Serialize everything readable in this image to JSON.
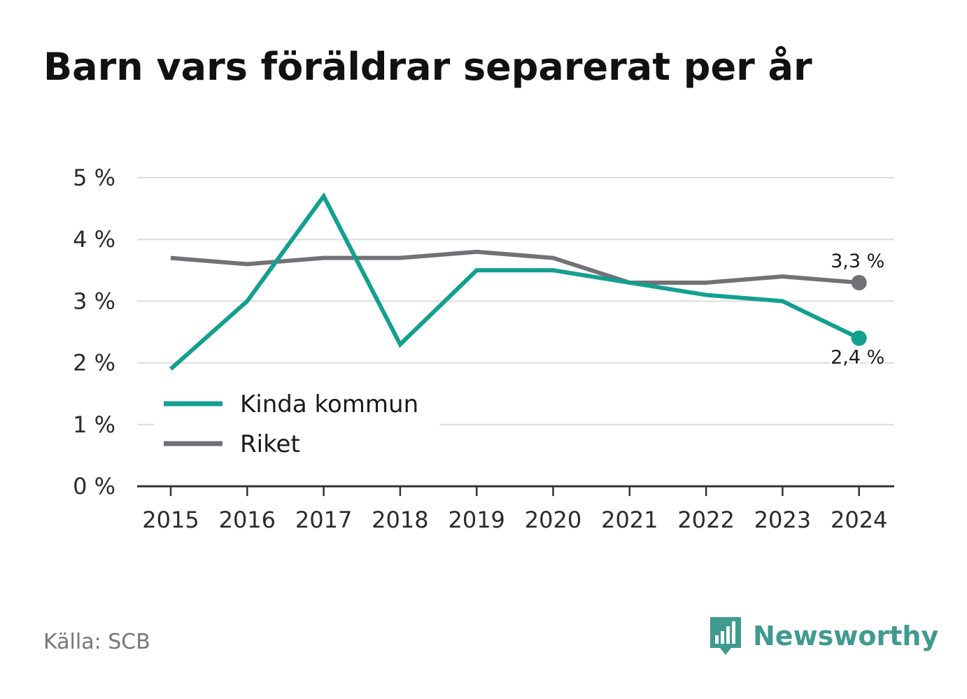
{
  "title": "Barn vars föräldrar separerat per år",
  "source": "Källa: SCB",
  "brand": {
    "name": "Newsworthy",
    "icon": "bar-chart-speech-bubble-icon",
    "color": "#3f9a90"
  },
  "chart_data": {
    "type": "line",
    "title": "Barn vars föräldrar separerat per år",
    "x": [
      "2015",
      "2016",
      "2017",
      "2018",
      "2019",
      "2020",
      "2021",
      "2022",
      "2023",
      "2024"
    ],
    "y_ticks": [
      "0 %",
      "1 %",
      "2 %",
      "3 %",
      "4 %",
      "5 %"
    ],
    "ylim": [
      0,
      5
    ],
    "grid": true,
    "legend": "bottom-left",
    "series": [
      {
        "name": "Kinda kommun",
        "color": "#12a090",
        "values": [
          1.9,
          3.0,
          4.7,
          2.3,
          3.5,
          3.5,
          3.3,
          3.1,
          3.0,
          2.4
        ],
        "end_label": "2,4 %"
      },
      {
        "name": "Riket",
        "color": "#727176",
        "values": [
          3.7,
          3.6,
          3.7,
          3.7,
          3.8,
          3.7,
          3.3,
          3.3,
          3.4,
          3.3
        ],
        "end_label": "3,3 %"
      }
    ]
  }
}
